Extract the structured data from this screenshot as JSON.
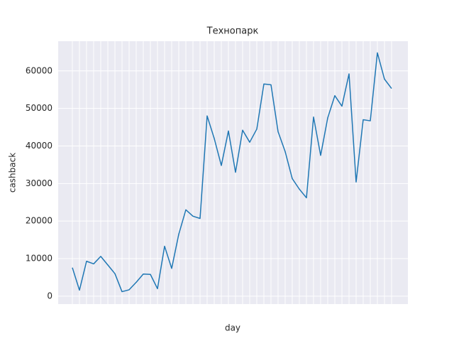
{
  "chart_data": {
    "type": "line",
    "title": "Технопарк",
    "x_label": "day",
    "y_label": "cashback",
    "categories": [
      null,
      null,
      null,
      null,
      null,
      null,
      null,
      null,
      null,
      null,
      null,
      null,
      null,
      null,
      null,
      null,
      null,
      null,
      null,
      null,
      null,
      null,
      null,
      null,
      null,
      null,
      null,
      null,
      null,
      null,
      null,
      null,
      null,
      null,
      null,
      null,
      null,
      null,
      null,
      null,
      null,
      null,
      null,
      null,
      null,
      null
    ],
    "series": [
      {
        "name": "cashback",
        "color": "#1f77b4",
        "values": [
          7600,
          1600,
          9300,
          8600,
          10600,
          8300,
          6000,
          1200,
          1700,
          3700,
          5900,
          5800,
          2000,
          13300,
          7400,
          16500,
          23000,
          21300,
          20700,
          48000,
          42000,
          34800,
          44000,
          33000,
          44200,
          41000,
          44500,
          56500,
          56300,
          43800,
          38500,
          31300,
          28500,
          26200,
          47700,
          37500,
          47500,
          53400,
          50600,
          59200,
          30400,
          47000,
          46700,
          64800,
          57800,
          55300
        ]
      }
    ],
    "ylim": [
      -2100,
      67900
    ],
    "yticks": [
      0,
      10000,
      20000,
      30000,
      40000,
      50000,
      60000
    ],
    "grid": true
  }
}
